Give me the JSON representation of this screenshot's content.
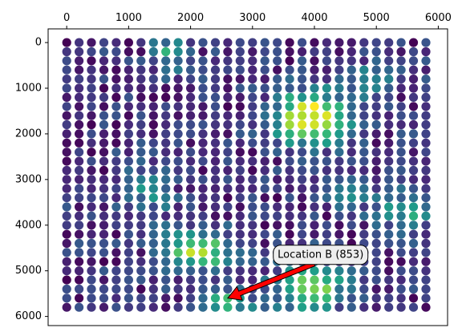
{
  "chart_data": {
    "type": "scatter",
    "title": "",
    "xlabel": "",
    "ylabel": "",
    "xlim": [
      -300,
      6150
    ],
    "ylim": [
      6200,
      -300
    ],
    "x_axis_position": "top",
    "y_inverted": true,
    "grid": false,
    "legend": "none",
    "colormap": "viridis",
    "value_range": [
      0,
      1100
    ],
    "xticks": [
      0,
      1000,
      2000,
      3000,
      4000,
      5000,
      6000
    ],
    "xtick_labels": [
      "0",
      "1000",
      "2000",
      "3000",
      "4000",
      "5000",
      "6000"
    ],
    "yticks": [
      0,
      1000,
      2000,
      3000,
      4000,
      5000,
      6000
    ],
    "ytick_labels": [
      "0",
      "1000",
      "2000",
      "3000",
      "4000",
      "5000",
      "6000"
    ],
    "grid_spacing": 200,
    "grid_count": 30,
    "hotspots": [
      {
        "x": 3950,
        "y": 1650,
        "amp": 1000,
        "sx": 420,
        "sy": 400
      },
      {
        "x": 2150,
        "y": 4550,
        "amp": 780,
        "sx": 380,
        "sy": 300
      },
      {
        "x": 3950,
        "y": 5350,
        "amp": 720,
        "sx": 420,
        "sy": 380
      },
      {
        "x": 2600,
        "y": 5750,
        "amp": 560,
        "sx": 280,
        "sy": 250
      },
      {
        "x": 1700,
        "y": 200,
        "amp": 450,
        "sx": 220,
        "sy": 320
      },
      {
        "x": 5500,
        "y": 3700,
        "amp": 430,
        "sx": 350,
        "sy": 300
      },
      {
        "x": 4500,
        "y": 3200,
        "amp": 420,
        "sx": 260,
        "sy": 260
      },
      {
        "x": 1300,
        "y": 3300,
        "amp": 340,
        "sx": 300,
        "sy": 400
      },
      {
        "x": 4900,
        "y": 800,
        "amp": 300,
        "sx": 300,
        "sy": 300
      }
    ],
    "annotation": {
      "text": "Location B (853)",
      "point": [
        2600,
        5600
      ],
      "text_position": [
        4100,
        4650
      ],
      "arrow_color": "#ff0000",
      "box_face": "#eeeeee"
    }
  }
}
